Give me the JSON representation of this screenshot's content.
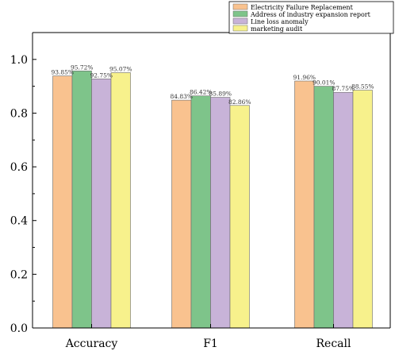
{
  "chart_data": {
    "type": "bar",
    "categories": [
      "Accuracy",
      "F1",
      "Recall"
    ],
    "series": [
      {
        "name": "Electricity Failure Replacement",
        "color": "#f9c28f",
        "values": [
          0.9385,
          0.8483,
          0.9196
        ],
        "labels": [
          "93.85%",
          "84.83%",
          "91.96%"
        ]
      },
      {
        "name": "Address of industry expansion report",
        "color": "#7ec48a",
        "values": [
          0.9572,
          0.8642,
          0.9001
        ],
        "labels": [
          "95.72%",
          "86.42%",
          "90.01%"
        ]
      },
      {
        "name": "Line loss anomaly",
        "color": "#c8b3d8",
        "values": [
          0.9275,
          0.8589,
          0.8775
        ],
        "labels": [
          "92.75%",
          "85.89%",
          "87.75%"
        ]
      },
      {
        "name": "marketing audit",
        "color": "#f7f18c",
        "values": [
          0.9507,
          0.8286,
          0.8855
        ],
        "labels": [
          "95.07%",
          "82.86%",
          "88.55%"
        ]
      }
    ],
    "yticks": [
      "0.0",
      "0.2",
      "0.4",
      "0.6",
      "0.8",
      "1.0"
    ],
    "ylim": [
      0,
      1.1
    ],
    "xlabel": "",
    "ylabel": "",
    "title": "",
    "legend_position": "top-right",
    "grid": false
  }
}
